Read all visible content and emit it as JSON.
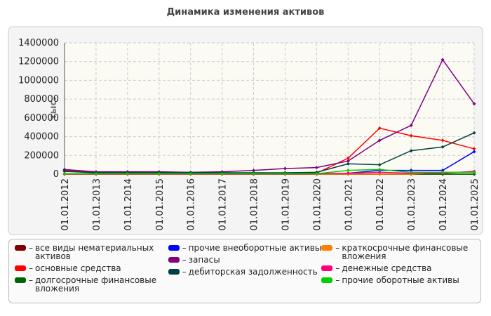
{
  "chart_data": {
    "type": "line",
    "title": "Динамика изменения активов",
    "y_label": "тыс.",
    "categories": [
      "01.01.2012",
      "01.01.2013",
      "01.01.2014",
      "01.01.2015",
      "01.01.2016",
      "01.01.2017",
      "01.01.2018",
      "01.01.2019",
      "01.01.2020",
      "01.01.2021",
      "01.01.2022",
      "01.01.2023",
      "01.01.2024",
      "01.01.2025"
    ],
    "ylim": [
      0,
      1400000
    ],
    "yticks": [
      0,
      200000,
      400000,
      600000,
      800000,
      1000000,
      1200000,
      1400000
    ],
    "grid": true,
    "legend": "bottom",
    "series": [
      {
        "name": "все виды нематериальных активов",
        "color": "#800000",
        "values": [
          0,
          0,
          0,
          0,
          0,
          0,
          0,
          0,
          0,
          0,
          0,
          0,
          0,
          0
        ]
      },
      {
        "name": "основные средства",
        "color": "#ff0000",
        "values": [
          40000,
          20000,
          20000,
          20000,
          15000,
          15000,
          10000,
          10000,
          10000,
          170000,
          490000,
          410000,
          360000,
          270000
        ]
      },
      {
        "name": "долгосрочные финансовые вложения",
        "color": "#006400",
        "values": [
          0,
          0,
          0,
          0,
          0,
          0,
          0,
          0,
          0,
          0,
          0,
          0,
          0,
          0
        ]
      },
      {
        "name": "прочие внеоборотные активы",
        "color": "#0000ff",
        "values": [
          0,
          0,
          0,
          0,
          0,
          0,
          0,
          0,
          0,
          10000,
          40000,
          40000,
          40000,
          240000
        ]
      },
      {
        "name": "запасы",
        "color": "#800080",
        "values": [
          50000,
          25000,
          25000,
          25000,
          20000,
          25000,
          40000,
          60000,
          70000,
          140000,
          360000,
          520000,
          1220000,
          750000
        ]
      },
      {
        "name": "дебиторская задолженность",
        "color": "#004040",
        "values": [
          30000,
          15000,
          15000,
          15000,
          15000,
          15000,
          15000,
          15000,
          20000,
          110000,
          100000,
          250000,
          290000,
          440000
        ]
      },
      {
        "name": "краткосрочные финансовые вложения",
        "color": "#ff8000",
        "values": [
          0,
          0,
          0,
          0,
          0,
          0,
          0,
          0,
          0,
          0,
          0,
          0,
          20000,
          20000
        ]
      },
      {
        "name": "денежные средства",
        "color": "#ff0080",
        "values": [
          5000,
          5000,
          5000,
          5000,
          5000,
          5000,
          5000,
          5000,
          5000,
          10000,
          20000,
          10000,
          10000,
          30000
        ]
      },
      {
        "name": "прочие оборотные активы",
        "color": "#00cc00",
        "values": [
          5000,
          5000,
          5000,
          5000,
          5000,
          5000,
          5000,
          5000,
          5000,
          40000,
          50000,
          20000,
          20000,
          20000
        ]
      }
    ]
  }
}
